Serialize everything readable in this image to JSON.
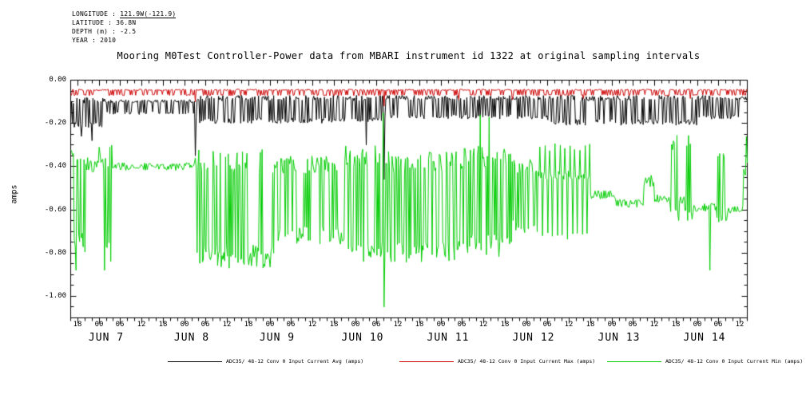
{
  "meta": {
    "longitude_label": "LONGITUDE : ",
    "longitude_value": "121.9W(-121.9)",
    "latitude": "LATITUDE : 36.8N",
    "depth": "DEPTH (m) : -2.5",
    "year": "YEAR : 2010"
  },
  "title": "Mooring M0Test Controller-Power data from MBARI instrument id 1322 at original sampling intervals",
  "y_axis_label": "amps",
  "colors": {
    "background": "#ffffff",
    "axis": "#000000"
  },
  "chart_data": {
    "type": "line",
    "title": "Mooring M0Test Controller-Power data from MBARI instrument id 1322 at original sampling intervals",
    "ylabel": "amps",
    "grid": false,
    "legend_position": "bottom",
    "x_range_hours": [
      16,
      206
    ],
    "x_epoch": "hours since JUN 6 2010 00:00",
    "ylim": [
      -1.1,
      0.0
    ],
    "y_ticks": [
      {
        "v": 0.0,
        "label": "0.00"
      },
      {
        "v": -0.2,
        "label": "-0.20"
      },
      {
        "v": -0.4,
        "label": "-0.40"
      },
      {
        "v": -0.6,
        "label": "-0.60"
      },
      {
        "v": -0.8,
        "label": "-0.80"
      },
      {
        "v": -1.0,
        "label": "-1.00"
      }
    ],
    "x_minor_step_hours": 2,
    "x_major_step_hours": 6,
    "y_minor_step": 0.05,
    "x_hour_ticks": [
      {
        "t": 18,
        "label": "18"
      },
      {
        "t": 24,
        "label": "00"
      },
      {
        "t": 30,
        "label": "06"
      },
      {
        "t": 36,
        "label": "12"
      },
      {
        "t": 42,
        "label": "18"
      },
      {
        "t": 48,
        "label": "00"
      },
      {
        "t": 54,
        "label": "06"
      },
      {
        "t": 60,
        "label": "12"
      },
      {
        "t": 66,
        "label": "18"
      },
      {
        "t": 72,
        "label": "00"
      },
      {
        "t": 78,
        "label": "06"
      },
      {
        "t": 84,
        "label": "12"
      },
      {
        "t": 90,
        "label": "18"
      },
      {
        "t": 96,
        "label": "00"
      },
      {
        "t": 102,
        "label": "06"
      },
      {
        "t": 108,
        "label": "12"
      },
      {
        "t": 114,
        "label": "18"
      },
      {
        "t": 120,
        "label": "00"
      },
      {
        "t": 126,
        "label": "06"
      },
      {
        "t": 132,
        "label": "12"
      },
      {
        "t": 138,
        "label": "18"
      },
      {
        "t": 144,
        "label": "00"
      },
      {
        "t": 150,
        "label": "06"
      },
      {
        "t": 156,
        "label": "12"
      },
      {
        "t": 162,
        "label": "18"
      },
      {
        "t": 168,
        "label": "00"
      },
      {
        "t": 174,
        "label": "06"
      },
      {
        "t": 180,
        "label": "12"
      },
      {
        "t": 186,
        "label": "18"
      },
      {
        "t": 192,
        "label": "00"
      },
      {
        "t": 198,
        "label": "06"
      },
      {
        "t": 204,
        "label": "12"
      }
    ],
    "date_labels": [
      {
        "t": 26,
        "label": "JUN 7"
      },
      {
        "t": 50,
        "label": "JUN 8"
      },
      {
        "t": 74,
        "label": "JUN 9"
      },
      {
        "t": 98,
        "label": "JUN 10"
      },
      {
        "t": 122,
        "label": "JUN 11"
      },
      {
        "t": 146,
        "label": "JUN 12"
      },
      {
        "t": 170,
        "label": "JUN 13"
      },
      {
        "t": 194,
        "label": "JUN 14"
      }
    ],
    "series": [
      {
        "name": "ADC35/ 48-12 Conv 0 Input Current Avg (amps)",
        "color": "#000000",
        "segments": [
          {
            "t0": 16,
            "t1": 26,
            "mode": "band",
            "top": -0.08,
            "bottom": -0.22,
            "bias": 0.4
          },
          {
            "t0": 26,
            "t1": 51,
            "mode": "band",
            "top": -0.09,
            "bottom": -0.16,
            "bias": 0.35
          },
          {
            "t0": 51,
            "t1": 104.5,
            "mode": "band",
            "top": -0.07,
            "bottom": -0.2,
            "bias": 0.4
          },
          {
            "t0": 104.5,
            "t1": 150,
            "mode": "band",
            "top": -0.07,
            "bottom": -0.18,
            "bias": 0.4
          },
          {
            "t0": 150,
            "t1": 192,
            "mode": "band",
            "top": -0.07,
            "bottom": -0.21,
            "bias": 0.45
          },
          {
            "t0": 192,
            "t1": 206,
            "mode": "band",
            "top": -0.07,
            "bottom": -0.18,
            "bias": 0.4
          }
        ],
        "spikes": [
          {
            "t": 19,
            "v": -0.26
          },
          {
            "t": 22,
            "v": -0.28
          },
          {
            "t": 51,
            "v": -0.35
          },
          {
            "t": 99,
            "v": -0.3
          },
          {
            "t": 104.1,
            "v": -0.46
          }
        ]
      },
      {
        "name": "ADC35/ 48-12 Conv 0 Input Current Max (amps)",
        "color": "#cc0000",
        "segments": [
          {
            "t0": 16,
            "t1": 206,
            "mode": "band",
            "top": -0.042,
            "bottom": -0.072,
            "bias": 0.3
          }
        ],
        "spikes": [
          {
            "t": 51,
            "v": -0.1
          },
          {
            "t": 104.1,
            "v": -0.12
          },
          {
            "t": 125,
            "v": -0.09
          },
          {
            "t": 140,
            "v": -0.09
          },
          {
            "t": 160,
            "v": -0.085
          },
          {
            "t": 190,
            "v": -0.085
          }
        ]
      },
      {
        "name": "ADC35/ 48-12 Conv 0 Input Current Min (amps)",
        "color": "#00cc00",
        "segments": [
          {
            "t0": 16,
            "t1": 17,
            "mode": "calm",
            "base": -0.34,
            "noise": 0.02
          },
          {
            "t0": 17,
            "t1": 21,
            "mode": "band",
            "top": -0.32,
            "bottom": -0.8,
            "bias": 0.5
          },
          {
            "t0": 21,
            "t1": 24,
            "mode": "calm",
            "base": -0.4,
            "noise": 0.03
          },
          {
            "t0": 24,
            "t1": 28,
            "mode": "band",
            "top": -0.3,
            "bottom": -0.86,
            "bias": 0.5
          },
          {
            "t0": 28,
            "t1": 51,
            "mode": "calm",
            "base": -0.4,
            "noise": 0.018
          },
          {
            "t0": 51,
            "t1": 74,
            "mode": "band",
            "top": -0.32,
            "bottom": -0.87,
            "bias": 0.55
          },
          {
            "t0": 74,
            "t1": 93,
            "mode": "band",
            "top": -0.35,
            "bottom": -0.76,
            "bias": 0.5
          },
          {
            "t0": 93,
            "t1": 104.5,
            "mode": "band",
            "top": -0.3,
            "bottom": -0.84,
            "bias": 0.5
          },
          {
            "t0": 104.5,
            "t1": 126,
            "mode": "band",
            "top": -0.33,
            "bottom": -0.85,
            "bias": 0.55
          },
          {
            "t0": 126,
            "t1": 140,
            "mode": "band",
            "top": -0.3,
            "bottom": -0.82,
            "bias": 0.5
          },
          {
            "t0": 140,
            "t1": 147,
            "mode": "band",
            "top": -0.36,
            "bottom": -0.72,
            "bias": 0.5
          },
          {
            "t0": 147,
            "t1": 162,
            "mode": "comb",
            "base": -0.44,
            "noise": 0.02,
            "depth": -0.72,
            "up": -0.31,
            "period": 1.4
          },
          {
            "t0": 162,
            "t1": 169,
            "mode": "calm",
            "base": -0.53,
            "noise": 0.02
          },
          {
            "t0": 169,
            "t1": 177,
            "mode": "calm",
            "base": -0.57,
            "noise": 0.02
          },
          {
            "t0": 177,
            "t1": 180,
            "mode": "calm",
            "base": -0.47,
            "noise": 0.03
          },
          {
            "t0": 180,
            "t1": 184.5,
            "mode": "calm",
            "base": -0.55,
            "noise": 0.02
          },
          {
            "t0": 184.5,
            "t1": 187,
            "mode": "band",
            "top": -0.24,
            "bottom": -0.66,
            "bias": 0.5
          },
          {
            "t0": 187,
            "t1": 188.5,
            "mode": "calm",
            "base": -0.55,
            "noise": 0.02
          },
          {
            "t0": 188.5,
            "t1": 191,
            "mode": "band",
            "top": -0.24,
            "bottom": -0.66,
            "bias": 0.5
          },
          {
            "t0": 191,
            "t1": 197.5,
            "mode": "calm",
            "base": -0.59,
            "noise": 0.02
          },
          {
            "t0": 197.5,
            "t1": 200.5,
            "mode": "band",
            "top": -0.3,
            "bottom": -0.66,
            "bias": 0.5
          },
          {
            "t0": 200.5,
            "t1": 205,
            "mode": "calm",
            "base": -0.6,
            "noise": 0.02
          },
          {
            "t0": 205,
            "t1": 206,
            "mode": "calm",
            "base": -0.4,
            "noise": 0.06
          }
        ],
        "spikes": [
          {
            "t": 17.6,
            "v": -0.88
          },
          {
            "t": 25.5,
            "v": -0.88
          },
          {
            "t": 103.8,
            "v": -0.15
          },
          {
            "t": 104.1,
            "v": -1.05
          },
          {
            "t": 131,
            "v": -0.16
          },
          {
            "t": 133.5,
            "v": -0.17
          },
          {
            "t": 195.5,
            "v": -0.88
          },
          {
            "t": 205.8,
            "v": -0.26
          }
        ]
      }
    ]
  }
}
